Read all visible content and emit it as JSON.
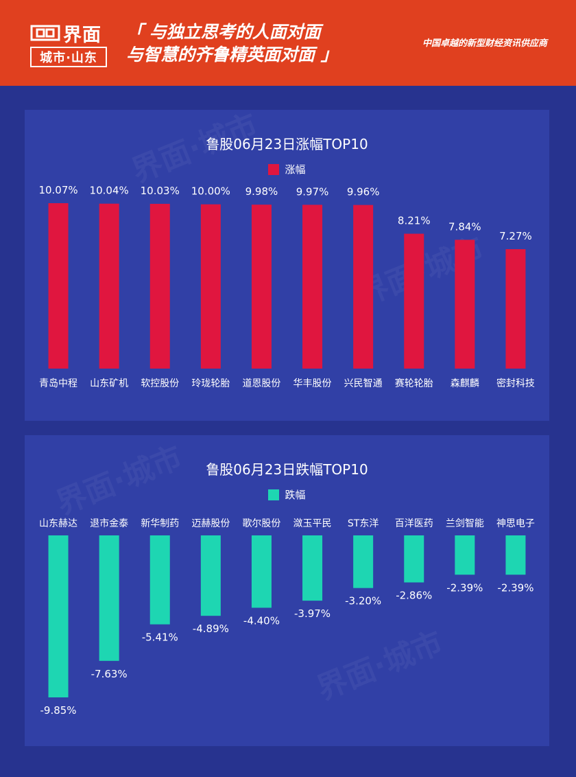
{
  "header": {
    "logo_name": "界面",
    "logo_sub": "城市·山东",
    "slogan_line1": "「 与独立思考的人面对面",
    "slogan_line2": "与智慧的齐鲁精英面对面 」",
    "tagline": "中国卓越的新型财经资讯供应商",
    "colors": {
      "header_bg": "#e0401f",
      "page_bg": "#27338f",
      "panel_bg": "#3140a6"
    }
  },
  "chart_data": [
    {
      "type": "bar",
      "title": "鲁股06月23日涨幅TOP10",
      "legend": "涨幅",
      "legend_position": "top-center",
      "color": "#e0163f",
      "categories": [
        "青岛中程",
        "山东矿机",
        "软控股份",
        "玲珑轮胎",
        "道恩股份",
        "华丰股份",
        "兴民智通",
        "赛轮轮胎",
        "森麒麟",
        "密封科技"
      ],
      "values": [
        10.07,
        10.04,
        10.03,
        10.0,
        9.98,
        9.97,
        9.96,
        8.21,
        7.84,
        7.27
      ],
      "labels": [
        "10.07%",
        "10.04%",
        "10.03%",
        "10.00%",
        "9.98%",
        "9.97%",
        "9.96%",
        "8.21%",
        "7.84%",
        "7.27%"
      ],
      "ylim": [
        0,
        10.07
      ],
      "grid": false
    },
    {
      "type": "bar",
      "title": "鲁股06月23日跌幅TOP10",
      "legend": "跌幅",
      "legend_position": "top-center",
      "color": "#1ed6b2",
      "categories": [
        "山东赫达",
        "退市金泰",
        "新华制药",
        "迈赫股份",
        "歌尔股份",
        "潋玉平民",
        "ST东洋",
        "百洋医药",
        "兰剑智能",
        "神思电子"
      ],
      "values": [
        -9.85,
        -7.63,
        -5.41,
        -4.89,
        -4.4,
        -3.97,
        -3.2,
        -2.86,
        -2.39,
        -2.39
      ],
      "labels": [
        "-9.85%",
        "-7.63%",
        "-5.41%",
        "-4.89%",
        "-4.40%",
        "-3.97%",
        "-3.20%",
        "-2.86%",
        "-2.39%",
        "-2.39%"
      ],
      "ylim": [
        -9.85,
        0
      ],
      "grid": false
    }
  ]
}
